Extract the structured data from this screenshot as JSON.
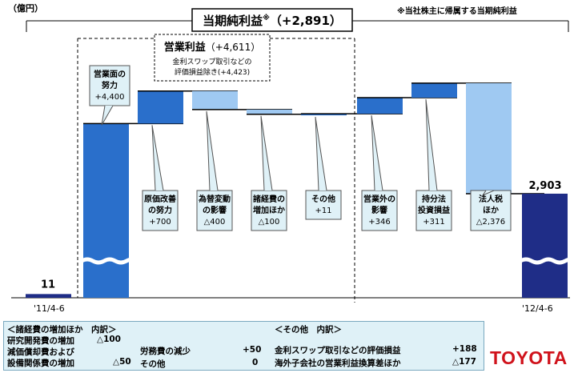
{
  "header": {
    "unit": "（億円）",
    "note": "※当社株主に帰属する当期純利益",
    "net_income_title": "当期純利益",
    "net_income_mark": "※",
    "net_income_value": "（+2,891）",
    "op_income_title": "営業利益",
    "op_income_value": "（+4,611）",
    "op_income_note_line1": "金利スワップ取引などの",
    "op_income_note_line2": "評価損益除き(+4,423)"
  },
  "colors": {
    "dark_navy": "#1f2d87",
    "blue": "#2a6fcb",
    "light_blue": "#9fc9f2",
    "callout_fill": "#dff1f7",
    "logo_red": "#d0121b"
  },
  "chart_data": {
    "type": "waterfall",
    "start": {
      "label": "'11/4-6",
      "value": 11,
      "value_text": "11"
    },
    "end": {
      "label": "'12/4-6",
      "value": 2903,
      "value_text": "2,903"
    },
    "steps": [
      {
        "lines": [
          "営業面の",
          "努力"
        ],
        "value": 4400,
        "value_text": "+4,400",
        "color": "blue",
        "scale_break": true
      },
      {
        "lines": [
          "原価改善",
          "の努力"
        ],
        "value": 700,
        "value_text": "+700",
        "color": "blue"
      },
      {
        "lines": [
          "為替変動",
          "の影響"
        ],
        "value": -400,
        "value_text": "△400",
        "color": "light_blue"
      },
      {
        "lines": [
          "諸経費の",
          "増加ほか"
        ],
        "value": -100,
        "value_text": "△100",
        "color": "light_blue"
      },
      {
        "lines": [
          "その他"
        ],
        "value": 11,
        "value_text": "+11",
        "color": "blue"
      },
      {
        "lines": [
          "営業外の",
          "影響"
        ],
        "value": 346,
        "value_text": "+346",
        "color": "blue"
      },
      {
        "lines": [
          "持分法",
          "投資損益"
        ],
        "value": 311,
        "value_text": "+311",
        "color": "blue"
      },
      {
        "lines": [
          "法人税",
          "ほか"
        ],
        "value": -2376,
        "value_text": "△2,376",
        "color": "light_blue"
      }
    ]
  },
  "breakdown": {
    "left_title": "＜諸経費の増加ほか　内訳＞",
    "left_rows": [
      {
        "label": "研究開発費の増加",
        "value": "△100"
      },
      {
        "label": "減価償却費および",
        "value": ""
      },
      {
        "label": "設備関係費の増加",
        "value": "△50"
      },
      {
        "label": "労務費の減少",
        "value": "+50"
      },
      {
        "label": "その他",
        "value": "0"
      }
    ],
    "right_title": "＜その他　内訳＞",
    "right_rows": [
      {
        "label": "金利スワップ取引などの評価損益",
        "value": "+188"
      },
      {
        "label": "海外子会社の営業利益換算差ほか",
        "value": "△177"
      }
    ]
  },
  "logo_text": "TOYOTA"
}
